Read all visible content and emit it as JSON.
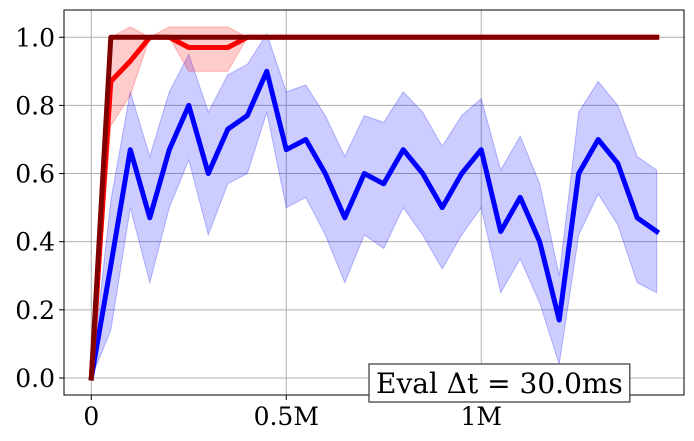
{
  "chart_data": {
    "type": "line",
    "title": "",
    "xlabel": "",
    "ylabel": "",
    "xlim": [
      -70000,
      1520000
    ],
    "ylim": [
      -0.05,
      1.08
    ],
    "grid": true,
    "x_ticks": [
      {
        "value": 0,
        "label": "0"
      },
      {
        "value": 500000,
        "label": "0.5M"
      },
      {
        "value": 1000000,
        "label": "1M"
      }
    ],
    "y_ticks": [
      {
        "value": 0.0,
        "label": "0.0"
      },
      {
        "value": 0.2,
        "label": "0.2"
      },
      {
        "value": 0.4,
        "label": "0.4"
      },
      {
        "value": 0.6,
        "label": "0.6"
      },
      {
        "value": 0.8,
        "label": "0.8"
      },
      {
        "value": 1.0,
        "label": "1.0"
      }
    ],
    "annotation": "Eval Δt = 30.0ms",
    "series": [
      {
        "color": "#0000ff",
        "band_color": "#0000ff",
        "band_opacity": 0.2,
        "x": [
          0,
          50000,
          100000,
          150000,
          200000,
          250000,
          300000,
          350000,
          400000,
          450000,
          500000,
          550000,
          600000,
          650000,
          700000,
          750000,
          800000,
          850000,
          900000,
          950000,
          1000000,
          1050000,
          1100000,
          1150000,
          1200000,
          1250000,
          1300000,
          1350000,
          1400000,
          1450000
        ],
        "y": [
          0.0,
          0.33,
          0.67,
          0.47,
          0.67,
          0.8,
          0.6,
          0.73,
          0.77,
          0.9,
          0.67,
          0.7,
          0.6,
          0.47,
          0.6,
          0.57,
          0.67,
          0.6,
          0.5,
          0.6,
          0.67,
          0.43,
          0.53,
          0.4,
          0.17,
          0.6,
          0.7,
          0.63,
          0.47,
          0.43
        ],
        "lower": [
          0.0,
          0.14,
          0.5,
          0.28,
          0.5,
          0.64,
          0.42,
          0.57,
          0.6,
          0.78,
          0.5,
          0.53,
          0.42,
          0.28,
          0.42,
          0.38,
          0.5,
          0.42,
          0.32,
          0.42,
          0.5,
          0.25,
          0.35,
          0.22,
          0.04,
          0.42,
          0.54,
          0.45,
          0.28,
          0.25
        ],
        "upper": [
          0.0,
          0.52,
          0.84,
          0.65,
          0.84,
          0.95,
          0.78,
          0.89,
          0.92,
          1.01,
          0.84,
          0.86,
          0.77,
          0.65,
          0.77,
          0.75,
          0.84,
          0.78,
          0.68,
          0.77,
          0.82,
          0.61,
          0.71,
          0.57,
          0.3,
          0.78,
          0.87,
          0.8,
          0.65,
          0.61
        ]
      },
      {
        "color": "#ff0000",
        "band_color": "#ff0000",
        "band_opacity": 0.2,
        "x": [
          0,
          50000,
          100000,
          150000,
          200000,
          250000,
          300000,
          350000,
          400000,
          450000,
          500000,
          550000,
          600000,
          650000,
          700000,
          750000,
          800000,
          850000,
          900000,
          950000,
          1000000,
          1050000,
          1100000,
          1150000,
          1200000,
          1250000,
          1300000,
          1350000,
          1400000,
          1450000
        ],
        "y": [
          0.0,
          0.87,
          0.93,
          1.0,
          1.0,
          0.97,
          0.97,
          0.97,
          1.0,
          1.0,
          1.0,
          1.0,
          1.0,
          1.0,
          1.0,
          1.0,
          1.0,
          1.0,
          1.0,
          1.0,
          1.0,
          1.0,
          1.0,
          1.0,
          1.0,
          1.0,
          1.0,
          1.0,
          1.0,
          1.0
        ],
        "lower": [
          0.0,
          0.74,
          0.83,
          1.0,
          1.0,
          0.9,
          0.9,
          0.9,
          1.0,
          1.0,
          1.0,
          1.0,
          1.0,
          1.0,
          1.0,
          1.0,
          1.0,
          1.0,
          1.0,
          1.0,
          1.0,
          1.0,
          1.0,
          1.0,
          1.0,
          1.0,
          1.0,
          1.0,
          1.0,
          1.0
        ],
        "upper": [
          0.0,
          1.0,
          1.03,
          1.0,
          1.03,
          1.03,
          1.03,
          1.03,
          1.0,
          1.0,
          1.0,
          1.0,
          1.0,
          1.0,
          1.0,
          1.0,
          1.0,
          1.0,
          1.0,
          1.0,
          1.0,
          1.0,
          1.0,
          1.0,
          1.0,
          1.0,
          1.0,
          1.0,
          1.0,
          1.0
        ]
      },
      {
        "color": "#800000",
        "x": [
          0,
          50000,
          100000,
          150000,
          200000,
          250000,
          300000,
          350000,
          400000,
          450000,
          500000,
          550000,
          600000,
          650000,
          700000,
          750000,
          800000,
          850000,
          900000,
          950000,
          1000000,
          1050000,
          1100000,
          1150000,
          1200000,
          1250000,
          1300000,
          1350000,
          1400000,
          1450000
        ],
        "y": [
          0.0,
          1.0,
          1.0,
          1.0,
          1.0,
          1.0,
          1.0,
          1.0,
          1.0,
          1.0,
          1.0,
          1.0,
          1.0,
          1.0,
          1.0,
          1.0,
          1.0,
          1.0,
          1.0,
          1.0,
          1.0,
          1.0,
          1.0,
          1.0,
          1.0,
          1.0,
          1.0,
          1.0,
          1.0,
          1.0
        ]
      }
    ]
  }
}
